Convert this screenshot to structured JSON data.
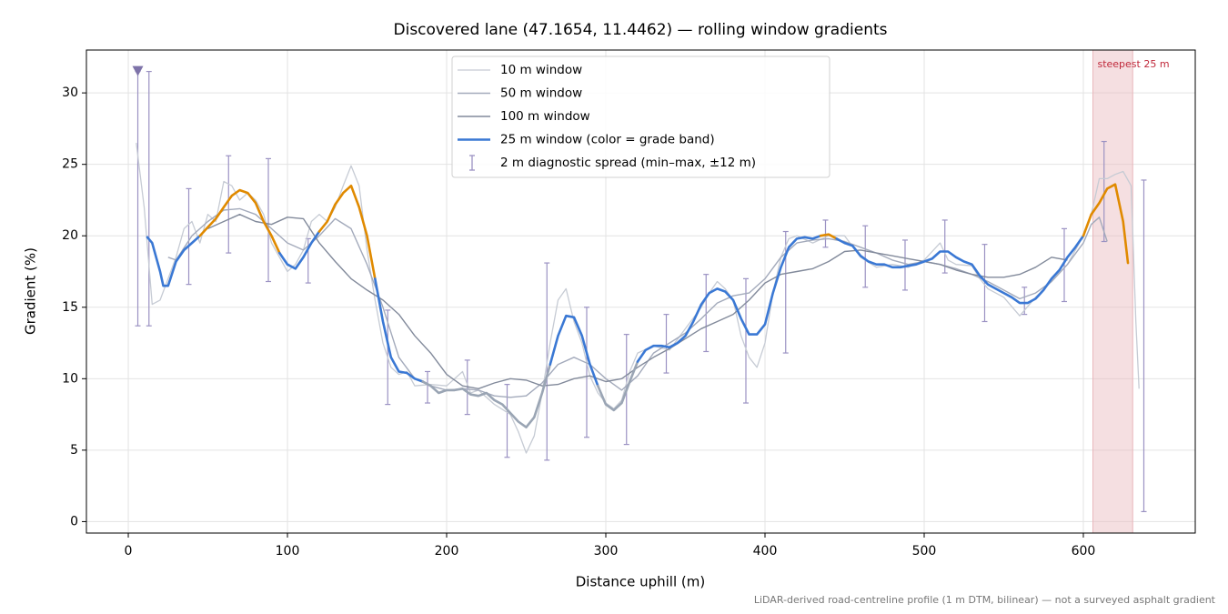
{
  "chart_data": {
    "type": "line",
    "title": "Discovered lane (47.1654, 11.4462) — rolling window gradients",
    "x_label": "Distance uphill (m)",
    "y_label": "Gradient (%)",
    "footnote": "LiDAR-derived road-centreline profile (1 m DTM, bilinear) — not a surveyed asphalt gradient",
    "xlim": [
      -26.3,
      670.3
    ],
    "ylim": [
      -0.8,
      33
    ],
    "xticks": [
      0,
      100,
      200,
      300,
      400,
      500,
      600
    ],
    "yticks": [
      0,
      5,
      10,
      15,
      20,
      25,
      30
    ],
    "grid": true,
    "legend": "upper center",
    "series": [
      {
        "name": "10 m window",
        "color": "#c6cbd4",
        "width": 1.3,
        "x": [
          5,
          10,
          15,
          20,
          25,
          30,
          35,
          40,
          45,
          50,
          55,
          60,
          65,
          70,
          75,
          80,
          85,
          90,
          95,
          100,
          105,
          110,
          115,
          120,
          125,
          130,
          135,
          140,
          145,
          150,
          155,
          160,
          165,
          170,
          175,
          180,
          190,
          200,
          210,
          215,
          220,
          230,
          240,
          245,
          250,
          255,
          260,
          265,
          270,
          275,
          280,
          285,
          290,
          295,
          300,
          305,
          310,
          315,
          320,
          330,
          340,
          350,
          360,
          365,
          370,
          375,
          380,
          385,
          390,
          395,
          400,
          405,
          410,
          415,
          420,
          430,
          440,
          450,
          460,
          470,
          480,
          490,
          500,
          510,
          515,
          520,
          530,
          535,
          540,
          550,
          560,
          570,
          580,
          590,
          600,
          605,
          610,
          615,
          620,
          625,
          630,
          633,
          635
        ],
        "values": [
          26.5,
          22,
          15.2,
          15.5,
          17,
          18.5,
          20.5,
          21,
          19.5,
          21.5,
          21.0,
          23.8,
          23.5,
          22.5,
          23,
          22.5,
          21.5,
          19.5,
          18.5,
          17.5,
          18,
          19,
          21,
          21.5,
          21,
          22,
          23.5,
          24.9,
          23.5,
          19,
          15.5,
          12.5,
          10.8,
          10.3,
          10.5,
          9.5,
          9.6,
          9.5,
          10.5,
          9,
          9.2,
          8.2,
          7.5,
          6.3,
          4.8,
          6,
          9,
          12.5,
          15.5,
          16.3,
          14,
          12.5,
          10.2,
          9.0,
          8.3,
          7.9,
          8.5,
          10.5,
          11.8,
          12.3,
          12.0,
          13.5,
          15.0,
          16.0,
          16.8,
          16.3,
          15.5,
          13,
          11.5,
          10.8,
          12.5,
          16,
          18.5,
          19.8,
          20,
          19.5,
          20,
          20,
          18.5,
          17.8,
          18,
          17.8,
          18.3,
          19.5,
          18.3,
          18,
          17.9,
          17,
          16.3,
          15.7,
          14.4,
          15.7,
          16.8,
          18,
          20,
          21.5,
          24,
          24,
          24.3,
          24.5,
          23.5,
          14,
          9.3
        ]
      },
      {
        "name": "50 m window",
        "color": "#a3aabb",
        "width": 1.4,
        "x": [
          25,
          30,
          40,
          50,
          60,
          70,
          80,
          90,
          100,
          110,
          120,
          130,
          140,
          150,
          160,
          170,
          180,
          190,
          200,
          210,
          220,
          230,
          240,
          250,
          260,
          270,
          280,
          290,
          300,
          310,
          320,
          330,
          340,
          350,
          360,
          370,
          380,
          390,
          400,
          410,
          420,
          430,
          440,
          450,
          460,
          470,
          480,
          490,
          500,
          510,
          520,
          530,
          540,
          550,
          560,
          570,
          580,
          590,
          600,
          605,
          610,
          615
        ],
        "values": [
          18.5,
          18.3,
          20,
          21,
          21.8,
          21.9,
          21.5,
          20.5,
          19.5,
          19,
          20,
          21.2,
          20.5,
          18,
          15,
          11.5,
          10,
          9.5,
          9.2,
          9.3,
          9.2,
          8.8,
          8.7,
          8.8,
          9.7,
          11,
          11.5,
          11.0,
          10.0,
          9.2,
          10.2,
          11.8,
          12.5,
          13.2,
          14.2,
          15.3,
          15.8,
          16.0,
          17.0,
          18.5,
          19.5,
          19.7,
          19.8,
          19.6,
          19.2,
          18.8,
          18.3,
          18.0,
          18.2,
          18.0,
          17.7,
          17.3,
          16.8,
          16.2,
          15.6,
          16.0,
          16.8,
          18.0,
          19.5,
          20.8,
          21.3,
          19.6
        ]
      },
      {
        "name": "100 m window",
        "color": "#828a9b",
        "width": 1.4,
        "x": [
          50,
          60,
          70,
          80,
          90,
          100,
          110,
          120,
          130,
          140,
          150,
          160,
          170,
          180,
          190,
          200,
          210,
          220,
          230,
          240,
          250,
          260,
          270,
          280,
          290,
          300,
          310,
          320,
          330,
          340,
          350,
          360,
          370,
          380,
          390,
          400,
          410,
          420,
          430,
          440,
          450,
          460,
          470,
          480,
          490,
          500,
          510,
          520,
          530,
          540,
          550,
          560,
          570,
          580,
          590
        ],
        "values": [
          20.5,
          21.0,
          21.5,
          21.0,
          20.8,
          21.3,
          21.2,
          19.5,
          18.2,
          17.0,
          16.2,
          15.5,
          14.5,
          13.0,
          11.8,
          10.3,
          9.5,
          9.3,
          9.7,
          10.0,
          9.9,
          9.5,
          9.6,
          10.0,
          10.2,
          9.8,
          10.0,
          10.8,
          11.5,
          12.1,
          12.8,
          13.5,
          14.0,
          14.5,
          15.5,
          16.7,
          17.3,
          17.5,
          17.7,
          18.2,
          18.9,
          19.0,
          18.8,
          18.6,
          18.4,
          18.2,
          18.0,
          17.6,
          17.3,
          17.1,
          17.1,
          17.3,
          17.8,
          18.5,
          18.3
        ]
      },
      {
        "name": "25 m window (color = grade band)",
        "color": "#3a78d4",
        "width": 2.6,
        "grade_bands": [
          {
            "below": 10,
            "color": "#9aa5b4"
          },
          {
            "below": 20,
            "color": "#3a78d4"
          },
          {
            "below": 100,
            "color": "#e08a00"
          }
        ],
        "x": [
          12,
          15,
          20,
          22,
          25,
          30,
          35,
          40,
          45,
          50,
          55,
          60,
          65,
          70,
          75,
          80,
          85,
          90,
          95,
          100,
          105,
          110,
          115,
          120,
          125,
          130,
          135,
          140,
          145,
          150,
          155,
          160,
          165,
          170,
          175,
          180,
          185,
          190,
          195,
          200,
          205,
          210,
          215,
          220,
          225,
          230,
          235,
          240,
          245,
          250,
          255,
          260,
          265,
          270,
          275,
          280,
          285,
          290,
          295,
          300,
          305,
          310,
          315,
          320,
          325,
          330,
          335,
          340,
          345,
          350,
          355,
          360,
          365,
          370,
          375,
          380,
          385,
          390,
          395,
          400,
          405,
          410,
          415,
          420,
          425,
          430,
          435,
          440,
          445,
          450,
          455,
          460,
          465,
          470,
          475,
          480,
          485,
          490,
          495,
          500,
          505,
          510,
          515,
          520,
          525,
          530,
          535,
          540,
          545,
          550,
          555,
          560,
          565,
          570,
          575,
          580,
          585,
          590,
          595,
          600,
          605,
          610,
          615,
          620,
          625,
          628
        ],
        "values": [
          19.9,
          19.5,
          17.5,
          16.5,
          16.5,
          18.2,
          19.0,
          19.5,
          20.0,
          20.6,
          21.2,
          22.0,
          22.8,
          23.2,
          23.0,
          22.3,
          21.0,
          20.0,
          18.8,
          18.0,
          17.7,
          18.5,
          19.5,
          20.3,
          21.0,
          22.2,
          23.0,
          23.5,
          22.0,
          20.0,
          17.0,
          14.0,
          11.5,
          10.5,
          10.4,
          10.0,
          9.8,
          9.5,
          9.0,
          9.2,
          9.2,
          9.3,
          8.9,
          8.8,
          9.0,
          8.5,
          8.2,
          7.6,
          7.0,
          6.6,
          7.3,
          9.0,
          11.0,
          13.0,
          14.4,
          14.3,
          13.0,
          11.0,
          9.5,
          8.2,
          7.8,
          8.3,
          9.8,
          11.2,
          12.0,
          12.3,
          12.3,
          12.2,
          12.5,
          13.0,
          14.0,
          15.2,
          16.0,
          16.3,
          16.1,
          15.5,
          14.2,
          13.1,
          13.1,
          13.8,
          16.0,
          17.8,
          19.2,
          19.8,
          19.9,
          19.8,
          20.0,
          20.1,
          19.8,
          19.5,
          19.3,
          18.6,
          18.2,
          18.0,
          18.0,
          17.8,
          17.8,
          17.9,
          18.0,
          18.2,
          18.4,
          18.9,
          18.9,
          18.5,
          18.2,
          18.0,
          17.2,
          16.6,
          16.3,
          16.0,
          15.7,
          15.3,
          15.3,
          15.6,
          16.2,
          17.0,
          17.6,
          18.5,
          19.2,
          20.0,
          21.5,
          22.3,
          23.3,
          23.6,
          21.0,
          18.1
        ]
      },
      {
        "name": "2 m diagnostic spread (min–max, ±12 m)",
        "type": "errorbar",
        "color": "#9b92c3",
        "x": [
          6,
          13,
          38,
          63,
          88,
          113,
          163,
          188,
          213,
          238,
          263,
          288,
          313,
          338,
          363,
          388,
          413,
          438,
          463,
          488,
          513,
          538,
          563,
          588,
          613,
          638
        ],
        "low": [
          13.7,
          13.7,
          16.6,
          18.8,
          16.8,
          16.7,
          8.2,
          8.3,
          7.5,
          4.5,
          4.3,
          5.9,
          5.4,
          10.4,
          11.9,
          8.3,
          11.8,
          19.2,
          16.4,
          16.2,
          17.4,
          14.0,
          14.5,
          15.4,
          19.6,
          0.7
        ],
        "high": [
          31.5,
          31.5,
          23.3,
          25.6,
          25.4,
          19.8,
          14.8,
          10.5,
          11.3,
          9.6,
          18.1,
          15.0,
          13.1,
          14.5,
          17.3,
          17.0,
          20.3,
          21.1,
          20.7,
          19.7,
          21.1,
          19.4,
          16.4,
          20.5,
          26.6,
          23.9
        ]
      }
    ],
    "marker": {
      "x": 6,
      "y": 31.5,
      "color": "#7e73a9"
    },
    "highlight": {
      "x_range": [
        606,
        631
      ],
      "label": "steepest 25 m",
      "color": "#e9b7bc",
      "label_color": "#c0293b"
    }
  }
}
